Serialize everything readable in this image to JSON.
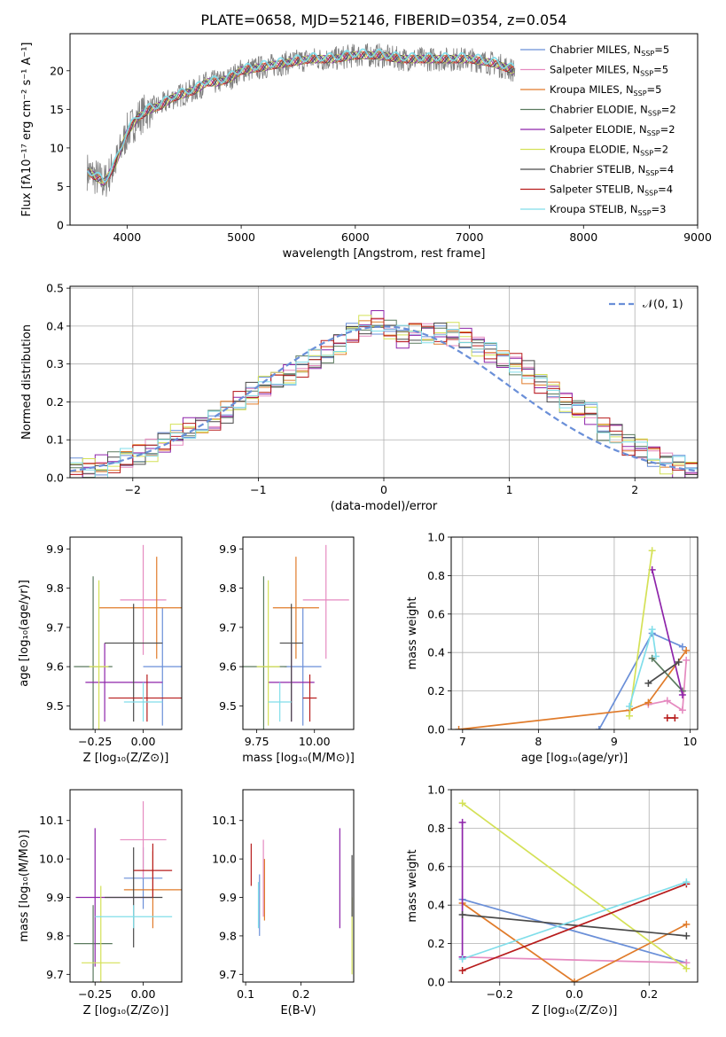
{
  "figure_title": "PLATE=0658, MJD=52146, FIBERID=0354, z=0.054",
  "series_styles": [
    {
      "name": "Chabrier MILES",
      "nssp": "5",
      "color": "#6a8fd8"
    },
    {
      "name": "Salpeter MILES",
      "nssp": "5",
      "color": "#e58ac0"
    },
    {
      "name": "Kroupa MILES",
      "nssp": "5",
      "color": "#e07b2a"
    },
    {
      "name": "Chabrier ELODIE",
      "nssp": "2",
      "color": "#5a7a5e"
    },
    {
      "name": "Salpeter ELODIE",
      "nssp": "2",
      "color": "#8e24aa"
    },
    {
      "name": "Kroupa ELODIE",
      "nssp": "2",
      "color": "#d4e157"
    },
    {
      "name": "Chabrier STELIB",
      "nssp": "4",
      "color": "#4a4a4a"
    },
    {
      "name": "Salpeter STELIB",
      "nssp": "4",
      "color": "#b71c1c"
    },
    {
      "name": "Kroupa STELIB",
      "nssp": "3",
      "color": "#80deea"
    }
  ],
  "chart_data": [
    {
      "id": "spectrum",
      "type": "line",
      "xlabel": "wavelength [Angstrom, rest frame]",
      "ylabel": "Flux [fλ10⁻¹⁷ erg cm⁻² s⁻¹ A⁻¹]",
      "xlim": [
        3500,
        9000
      ],
      "ylim": [
        0,
        24.8
      ],
      "xticks": [
        4000,
        5000,
        6000,
        7000,
        8000,
        9000
      ],
      "yticks": [
        0,
        5,
        10,
        15,
        20
      ],
      "legend": "top-right",
      "grid": false,
      "continuum": {
        "x": [
          3650,
          3700,
          3800,
          3900,
          4000,
          4100,
          4200,
          4300,
          4400,
          4500,
          4600,
          4700,
          4800,
          4900,
          5000,
          5200,
          5400,
          5600,
          5800,
          6000,
          6200,
          6400,
          6600,
          6800,
          7000,
          7200,
          7400
        ],
        "y": [
          7,
          6.5,
          5.5,
          8,
          12,
          14,
          15,
          15.5,
          16.5,
          17,
          17.5,
          18.5,
          18.5,
          19,
          20,
          20.5,
          21,
          21.5,
          21.5,
          22,
          22,
          21.5,
          21.5,
          21.5,
          21.5,
          21,
          20
        ]
      },
      "observed_extent": [
        3650,
        7400
      ]
    },
    {
      "id": "residuals",
      "type": "line",
      "xlabel": "(data-model)/error",
      "ylabel": "Normed distribution",
      "xlim": [
        -2.5,
        2.5
      ],
      "ylim": [
        0,
        0.505
      ],
      "xticks": [
        -2,
        -1,
        0,
        1,
        2
      ],
      "yticks": [
        0.0,
        0.1,
        0.2,
        0.3,
        0.4,
        0.5
      ],
      "grid": true,
      "legend": "top-right",
      "reference_label": "𝒩(0, 1)",
      "bin_width": 0.1,
      "hist_base": [
        0.02,
        0.025,
        0.03,
        0.04,
        0.05,
        0.06,
        0.07,
        0.09,
        0.11,
        0.13,
        0.14,
        0.15,
        0.17,
        0.2,
        0.22,
        0.24,
        0.26,
        0.27,
        0.29,
        0.31,
        0.33,
        0.35,
        0.38,
        0.4,
        0.41,
        0.39,
        0.37,
        0.38,
        0.38,
        0.38,
        0.38,
        0.37,
        0.35,
        0.33,
        0.31,
        0.3,
        0.28,
        0.25,
        0.23,
        0.2,
        0.18,
        0.17,
        0.13,
        0.12,
        0.09,
        0.08,
        0.06,
        0.04,
        0.03,
        0.02
      ]
    },
    {
      "id": "age_vs_Z",
      "type": "scatter",
      "xlabel": "Z [log₁₀(Z/Z⊙)]",
      "ylabel": "age  [log₁₀(age/yr)]",
      "xlim": [
        -0.38,
        0.2
      ],
      "ylim": [
        9.44,
        9.93
      ],
      "xticks": [
        -0.25,
        0.0
      ],
      "yticks": [
        9.5,
        9.6,
        9.7,
        9.8,
        9.9
      ],
      "points": [
        {
          "series": "Chabrier MILES",
          "x": 0.1,
          "y": 9.6,
          "xerr": [
            0.1,
            0.1
          ],
          "yerr": [
            0.15,
            0.15
          ]
        },
        {
          "series": "Salpeter MILES",
          "x": 0.0,
          "y": 9.77,
          "xerr": [
            0.12,
            0.12
          ],
          "yerr": [
            0.14,
            0.14
          ]
        },
        {
          "series": "Kroupa MILES",
          "x": 0.07,
          "y": 9.75,
          "xerr": [
            0.3,
            0.3
          ],
          "yerr": [
            0.13,
            0.13
          ]
        },
        {
          "series": "Chabrier ELODIE",
          "x": -0.26,
          "y": 9.6,
          "xerr": [
            0.1,
            0.1
          ],
          "yerr": [
            0.23,
            0.23
          ]
        },
        {
          "series": "Salpeter ELODIE",
          "x": -0.2,
          "y": 9.56,
          "xerr": [
            0.1,
            0.3
          ],
          "yerr": [
            0.1,
            0.1
          ]
        },
        {
          "series": "Kroupa ELODIE",
          "x": -0.23,
          "y": 9.6,
          "xerr": [
            0.05,
            0.05
          ],
          "yerr": [
            0.25,
            0.22
          ]
        },
        {
          "series": "Chabrier STELIB",
          "x": -0.05,
          "y": 9.66,
          "xerr": [
            0.15,
            0.15
          ],
          "yerr": [
            0.2,
            0.1
          ]
        },
        {
          "series": "Salpeter STELIB",
          "x": 0.02,
          "y": 9.52,
          "xerr": [
            0.2,
            0.2
          ],
          "yerr": [
            0.06,
            0.06
          ]
        },
        {
          "series": "Kroupa STELIB",
          "x": 0.0,
          "y": 9.51,
          "xerr": [
            0.1,
            0.1
          ],
          "yerr": [
            0.05,
            0.05
          ]
        }
      ]
    },
    {
      "id": "age_vs_mass",
      "type": "scatter",
      "xlabel": "mass [log₁₀(M/M⊙)]",
      "ylabel": "",
      "xlim": [
        9.69,
        10.17
      ],
      "ylim": [
        9.44,
        9.93
      ],
      "xticks": [
        9.75,
        10.0
      ],
      "yticks": [
        9.5,
        9.6,
        9.7,
        9.8,
        9.9
      ],
      "points": [
        {
          "series": "Chabrier MILES",
          "x": 9.95,
          "y": 9.6,
          "xerr": [
            0.08,
            0.08
          ],
          "yerr": [
            0.15,
            0.15
          ]
        },
        {
          "series": "Salpeter MILES",
          "x": 10.05,
          "y": 9.77,
          "xerr": [
            0.1,
            0.1
          ],
          "yerr": [
            0.15,
            0.14
          ]
        },
        {
          "series": "Kroupa MILES",
          "x": 9.92,
          "y": 9.75,
          "xerr": [
            0.1,
            0.1
          ],
          "yerr": [
            0.13,
            0.13
          ]
        },
        {
          "series": "Chabrier ELODIE",
          "x": 9.78,
          "y": 9.6,
          "xerr": [
            0.1,
            0.1
          ],
          "yerr": [
            0.23,
            0.23
          ]
        },
        {
          "series": "Salpeter ELODIE",
          "x": 9.9,
          "y": 9.56,
          "xerr": [
            0.1,
            0.1
          ],
          "yerr": [
            0.1,
            0.1
          ]
        },
        {
          "series": "Kroupa ELODIE",
          "x": 9.8,
          "y": 9.6,
          "xerr": [
            0.05,
            0.05
          ],
          "yerr": [
            0.15,
            0.22
          ]
        },
        {
          "series": "Chabrier STELIB",
          "x": 9.9,
          "y": 9.66,
          "xerr": [
            0.05,
            0.05
          ],
          "yerr": [
            0.2,
            0.1
          ]
        },
        {
          "series": "Salpeter STELIB",
          "x": 9.98,
          "y": 9.52,
          "xerr": [
            0.03,
            0.03
          ],
          "yerr": [
            0.06,
            0.06
          ]
        },
        {
          "series": "Kroupa STELIB",
          "x": 9.85,
          "y": 9.51,
          "xerr": [
            0.05,
            0.05
          ],
          "yerr": [
            0.05,
            0.05
          ]
        }
      ]
    },
    {
      "id": "weight_vs_age",
      "type": "line",
      "xlabel": "age  [log₁₀(age/yr)]",
      "ylabel": "mass weight",
      "xlim": [
        6.85,
        10.1
      ],
      "ylim": [
        0,
        1.0
      ],
      "xticks": [
        7,
        8,
        9,
        10
      ],
      "yticks": [
        0.0,
        0.2,
        0.4,
        0.6,
        0.8,
        1.0
      ],
      "grid": true,
      "series": [
        {
          "name": "Chabrier MILES",
          "x": [
            8.8,
            9.5,
            9.9
          ],
          "y": [
            0.0,
            0.5,
            0.43
          ]
        },
        {
          "name": "Salpeter MILES",
          "x": [
            9.45,
            9.7,
            9.9,
            9.95
          ],
          "y": [
            0.13,
            0.15,
            0.1,
            0.36
          ]
        },
        {
          "name": "Kroupa MILES",
          "x": [
            6.95,
            9.2,
            9.45,
            9.95
          ],
          "y": [
            0.0,
            0.1,
            0.14,
            0.41
          ]
        },
        {
          "name": "Chabrier ELODIE",
          "x": [
            9.5,
            9.9
          ],
          "y": [
            0.37,
            0.2
          ]
        },
        {
          "name": "Salpeter ELODIE",
          "x": [
            9.5,
            9.9
          ],
          "y": [
            0.83,
            0.18
          ]
        },
        {
          "name": "Kroupa ELODIE",
          "x": [
            9.2,
            9.5
          ],
          "y": [
            0.07,
            0.93
          ]
        },
        {
          "name": "Chabrier STELIB",
          "x": [
            9.45,
            9.85
          ],
          "y": [
            0.24,
            0.35
          ]
        },
        {
          "name": "Salpeter STELIB",
          "x": [
            9.7,
            9.8
          ],
          "y": [
            0.06,
            0.06
          ]
        },
        {
          "name": "Kroupa STELIB",
          "x": [
            9.2,
            9.5,
            9.55
          ],
          "y": [
            0.12,
            0.52,
            0.38
          ]
        }
      ]
    },
    {
      "id": "mass_vs_Z",
      "type": "scatter",
      "xlabel": "Z [log₁₀(Z/Z⊙)]",
      "ylabel": "mass [log₁₀(M/M⊙)]",
      "xlim": [
        -0.38,
        0.2
      ],
      "ylim": [
        9.68,
        10.18
      ],
      "xticks": [
        -0.25,
        0.0
      ],
      "yticks": [
        9.7,
        9.8,
        9.9,
        10.0,
        10.1
      ],
      "points": [
        {
          "series": "Chabrier MILES",
          "x": 0.0,
          "y": 9.95,
          "xerr": [
            0.1,
            0.1
          ],
          "yerr": [
            0.08,
            0.08
          ]
        },
        {
          "series": "Salpeter MILES",
          "x": 0.0,
          "y": 10.05,
          "xerr": [
            0.12,
            0.12
          ],
          "yerr": [
            0.1,
            0.1
          ]
        },
        {
          "series": "Kroupa MILES",
          "x": 0.05,
          "y": 9.92,
          "xerr": [
            0.15,
            0.15
          ],
          "yerr": [
            0.1,
            0.1
          ]
        },
        {
          "series": "Chabrier ELODIE",
          "x": -0.26,
          "y": 9.78,
          "xerr": [
            0.1,
            0.1
          ],
          "yerr": [
            0.1,
            0.1
          ]
        },
        {
          "series": "Salpeter ELODIE",
          "x": -0.25,
          "y": 9.9,
          "xerr": [
            0.1,
            0.3
          ],
          "yerr": [
            0.18,
            0.18
          ]
        },
        {
          "series": "Kroupa ELODIE",
          "x": -0.22,
          "y": 9.73,
          "xerr": [
            0.1,
            0.1
          ],
          "yerr": [
            0.2,
            0.2
          ]
        },
        {
          "series": "Chabrier STELIB",
          "x": -0.05,
          "y": 9.9,
          "xerr": [
            0.15,
            0.15
          ],
          "yerr": [
            0.13,
            0.13
          ]
        },
        {
          "series": "Salpeter STELIB",
          "x": 0.05,
          "y": 9.97,
          "xerr": [
            0.1,
            0.1
          ],
          "yerr": [
            0.07,
            0.07
          ]
        },
        {
          "series": "Kroupa STELIB",
          "x": -0.05,
          "y": 9.85,
          "xerr": [
            0.2,
            0.2
          ],
          "yerr": [
            0.03,
            0.03
          ]
        }
      ]
    },
    {
      "id": "mass_vs_ebv",
      "type": "scatter",
      "xlabel": "E(B-V)",
      "ylabel": "",
      "xlim": [
        0.095,
        0.295
      ],
      "ylim": [
        9.68,
        10.18
      ],
      "xticks": [
        0.1,
        0.2
      ],
      "yticks": [
        9.7,
        9.8,
        9.9,
        10.0,
        10.1
      ],
      "points": [
        {
          "series": "Chabrier MILES",
          "x": 0.125,
          "y": 9.88,
          "xerr": [
            0,
            0
          ],
          "yerr": [
            0.08,
            0.08
          ]
        },
        {
          "series": "Salpeter MILES",
          "x": 0.132,
          "y": 9.95,
          "xerr": [
            0,
            0
          ],
          "yerr": [
            0.1,
            0.1
          ]
        },
        {
          "series": "Kroupa MILES",
          "x": 0.134,
          "y": 9.92,
          "xerr": [
            0,
            0
          ],
          "yerr": [
            0.08,
            0.08
          ]
        },
        {
          "series": "Salpeter ELODIE",
          "x": 0.27,
          "y": 9.95,
          "xerr": [
            0,
            0
          ],
          "yerr": [
            0.13,
            0.13
          ]
        },
        {
          "series": "Kroupa ELODIE",
          "x": 0.292,
          "y": 9.8,
          "xerr": [
            0,
            0
          ],
          "yerr": [
            0.1,
            0.1
          ]
        },
        {
          "series": "Chabrier STELIB",
          "x": 0.292,
          "y": 9.93,
          "xerr": [
            0,
            0
          ],
          "yerr": [
            0.08,
            0.08
          ]
        },
        {
          "series": "Salpeter STELIB",
          "x": 0.11,
          "y": 9.98,
          "xerr": [
            0,
            0
          ],
          "yerr": [
            0.05,
            0.06
          ]
        },
        {
          "series": "Kroupa STELIB",
          "x": 0.123,
          "y": 9.88,
          "xerr": [
            0,
            0
          ],
          "yerr": [
            0.06,
            0.06
          ]
        }
      ]
    },
    {
      "id": "weight_vs_Z",
      "type": "line",
      "xlabel": "Z [log₁₀(Z/Z⊙)]",
      "ylabel": "mass weight",
      "xlim": [
        -0.33,
        0.33
      ],
      "ylim": [
        0,
        1.0
      ],
      "xticks": [
        -0.2,
        0.0,
        0.2
      ],
      "yticks": [
        0.0,
        0.2,
        0.4,
        0.6,
        0.8,
        1.0
      ],
      "grid": true,
      "series": [
        {
          "name": "Chabrier MILES",
          "x": [
            -0.3,
            0.3
          ],
          "y": [
            0.43,
            0.1
          ]
        },
        {
          "name": "Salpeter MILES",
          "x": [
            -0.3,
            0.3
          ],
          "y": [
            0.13,
            0.1
          ]
        },
        {
          "name": "Kroupa MILES",
          "x": [
            -0.3,
            0.0,
            0.3
          ],
          "y": [
            0.41,
            0.0,
            0.3
          ]
        },
        {
          "name": "Salpeter ELODIE",
          "x": [
            -0.3,
            -0.3
          ],
          "y": [
            0.83,
            0.13
          ]
        },
        {
          "name": "Kroupa ELODIE",
          "x": [
            -0.3,
            0.3
          ],
          "y": [
            0.93,
            0.07
          ]
        },
        {
          "name": "Chabrier STELIB",
          "x": [
            -0.3,
            0.3
          ],
          "y": [
            0.35,
            0.24
          ]
        },
        {
          "name": "Salpeter STELIB",
          "x": [
            -0.3,
            0.3
          ],
          "y": [
            0.06,
            0.51
          ]
        },
        {
          "name": "Kroupa STELIB",
          "x": [
            -0.3,
            0.3
          ],
          "y": [
            0.12,
            0.52
          ]
        }
      ]
    }
  ]
}
